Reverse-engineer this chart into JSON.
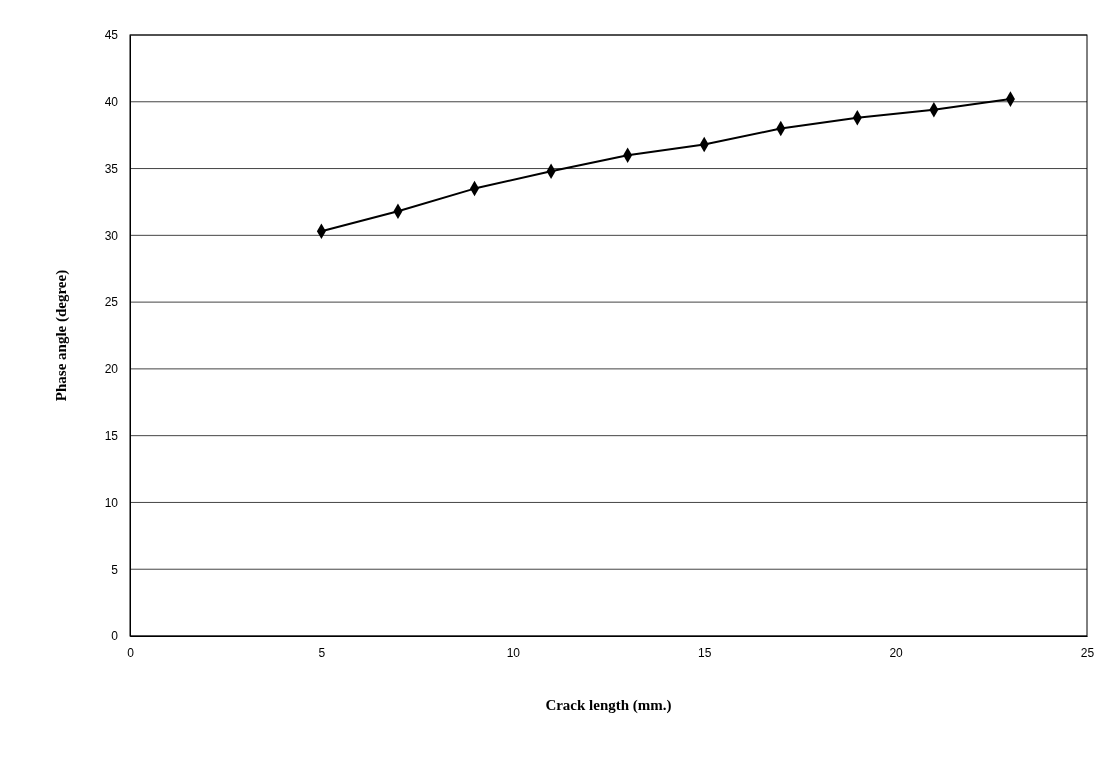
{
  "chart_data": {
    "type": "line",
    "xlabel": "Crack length (mm.)",
    "ylabel": "Phase angle (degree)",
    "x": [
      5,
      7,
      9,
      11,
      13,
      15,
      17,
      19,
      21,
      23
    ],
    "series": [
      {
        "color": "#000000",
        "values": [
          30.3,
          31.8,
          33.5,
          34.8,
          36.0,
          36.8,
          38.0,
          38.8,
          39.4,
          40.2
        ]
      }
    ],
    "xlim": [
      0,
      25
    ],
    "xticks": [
      0,
      5,
      10,
      15,
      20,
      25
    ],
    "ylim": [
      0,
      45
    ],
    "yticks": [
      0,
      5,
      10,
      15,
      20,
      25,
      30,
      35,
      40,
      45
    ],
    "grid": "y",
    "marker": "diamond",
    "line_style": "solid"
  }
}
